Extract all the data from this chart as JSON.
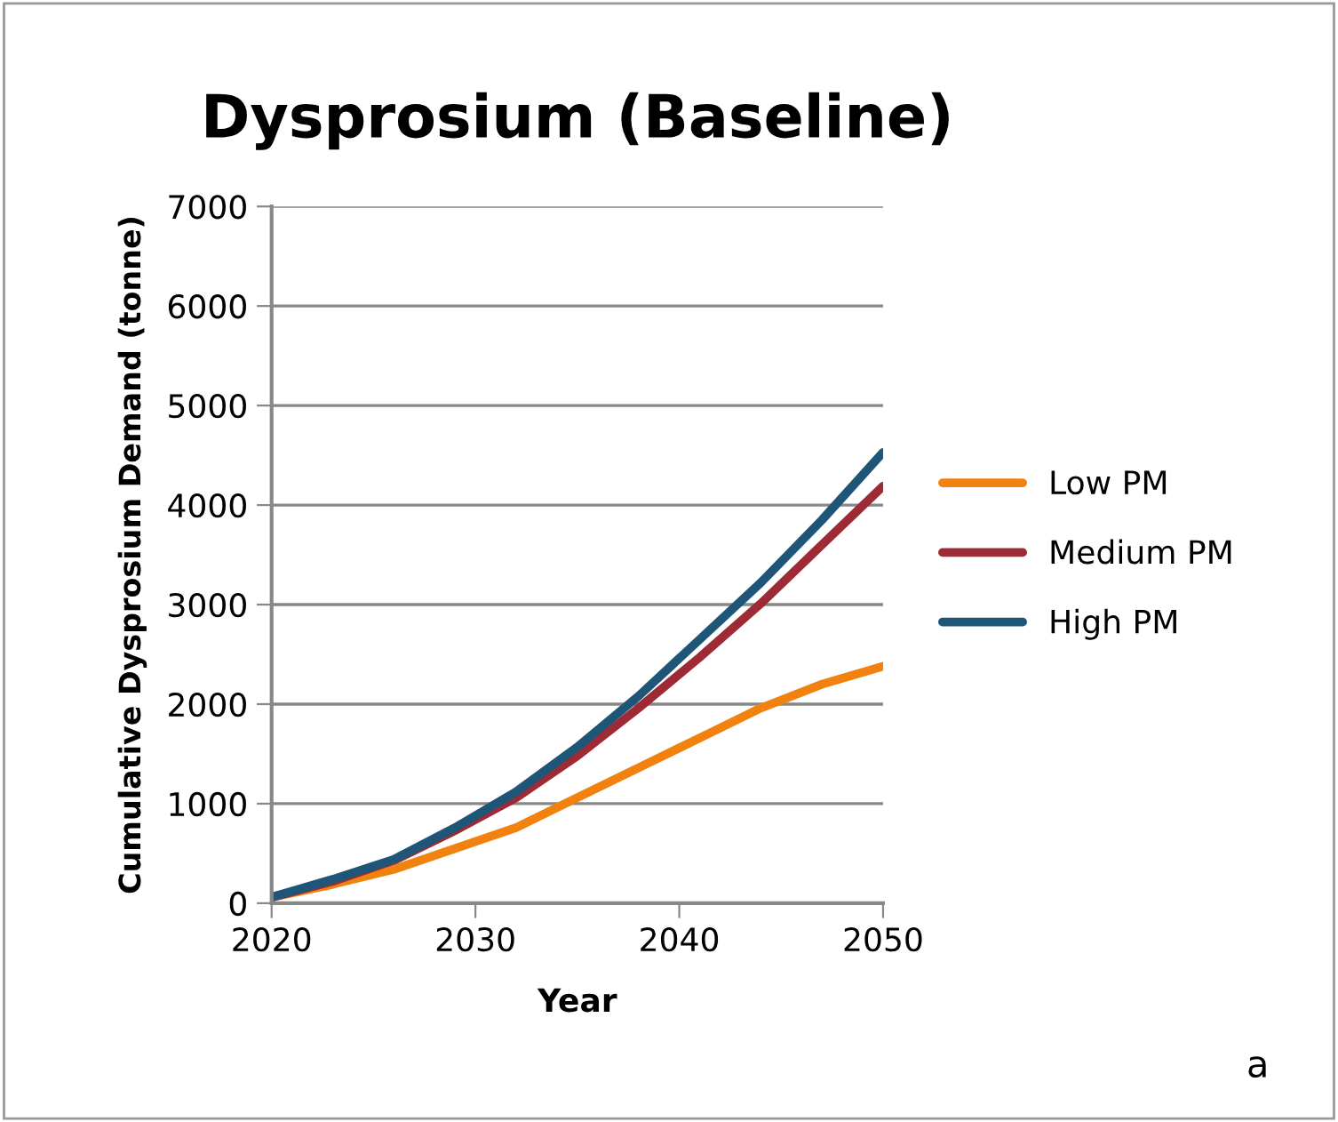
{
  "chart_data": {
    "type": "line",
    "title": "Dysprosium (Baseline)",
    "xlabel": "Year",
    "ylabel": "Cumulative Dysprosium Demand (tonne)",
    "x": [
      2020,
      2023,
      2026,
      2029,
      2032,
      2035,
      2038,
      2041,
      2044,
      2047,
      2050
    ],
    "series": [
      {
        "name": "Low PM",
        "color": "#f28210",
        "values": [
          60,
          190,
          340,
          550,
          760,
          1060,
          1360,
          1660,
          1960,
          2200,
          2380
        ]
      },
      {
        "name": "Medium PM",
        "color": "#9e2a35",
        "values": [
          60,
          220,
          430,
          730,
          1060,
          1480,
          1960,
          2470,
          3010,
          3600,
          4190
        ]
      },
      {
        "name": "High PM",
        "color": "#1f5678",
        "values": [
          60,
          240,
          440,
          760,
          1120,
          1570,
          2080,
          2650,
          3220,
          3850,
          4530
        ]
      }
    ],
    "xlim": [
      2020,
      2050
    ],
    "xticks": [
      2020,
      2030,
      2040,
      2050
    ],
    "ylim": [
      0,
      7000
    ],
    "yticks": [
      0,
      1000,
      2000,
      3000,
      4000,
      5000,
      6000,
      7000
    ],
    "grid": "y",
    "legend": "right",
    "marker": "none",
    "line_style": "solid",
    "annotations": [
      "a"
    ]
  }
}
